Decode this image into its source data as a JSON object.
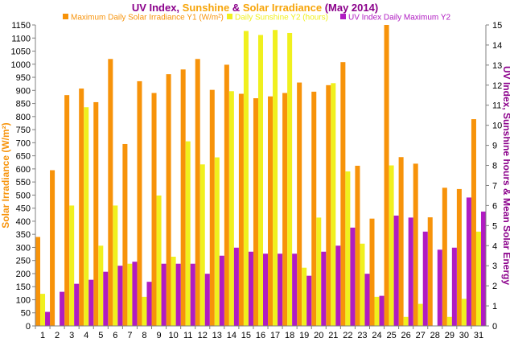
{
  "chart_data": {
    "type": "bar",
    "title_parts": [
      {
        "text": "UV Index, ",
        "color": "#8b008b"
      },
      {
        "text": "Sunshine",
        "color": "#f7a50a"
      },
      {
        "text": " & ",
        "color": "#8b008b"
      },
      {
        "text": "Solar Irradiance",
        "color": "#f7a50a"
      },
      {
        "text": " (May 2014)",
        "color": "#8b008b"
      }
    ],
    "ylabel_left": "Solar Irradiance (W/m²)",
    "ylabel_right": "UV Index, Sunshine hours & Mean Solar Energy",
    "categories": [
      "1",
      "2",
      "3",
      "4",
      "5",
      "6",
      "7",
      "8",
      "9",
      "10",
      "11",
      "12",
      "13",
      "14",
      "15",
      "16",
      "17",
      "18",
      "19",
      "20",
      "21",
      "22",
      "23",
      "24",
      "25",
      "26",
      "27",
      "28",
      "29",
      "30",
      "31"
    ],
    "y_left": {
      "min": 0,
      "max": 1150,
      "step": 50
    },
    "y_right": {
      "min": 0,
      "max": 15,
      "step": 1
    },
    "grid": false,
    "legend_position": "top",
    "series": [
      {
        "name": "Maximum Daily Solar Irradiance Y1 (W/m²)",
        "axis": "left",
        "color": "#f7930a",
        "values": [
          340,
          595,
          882,
          907,
          855,
          1020,
          695,
          935,
          890,
          962,
          980,
          1020,
          902,
          998,
          887,
          870,
          877,
          890,
          930,
          895,
          920,
          1008,
          612,
          410,
          1150,
          645,
          620,
          415,
          528,
          523,
          790
        ]
      },
      {
        "name": "Daily Sunshine Y2 (hours)",
        "axis": "right",
        "color": "#f0f01e",
        "values": [
          1.6,
          0,
          6.0,
          10.9,
          4.0,
          6.0,
          3.1,
          1.45,
          6.5,
          3.45,
          9.2,
          8.05,
          8.4,
          11.7,
          14.7,
          14.5,
          14.75,
          14.6,
          2.9,
          5.4,
          12.1,
          7.7,
          4.1,
          1.45,
          8.0,
          0.45,
          1.1,
          0,
          0.45,
          1.35,
          4.7
        ]
      },
      {
        "name": "UV Index Daily Maximum Y2",
        "axis": "right",
        "color": "#b01cc2",
        "values": [
          0.7,
          1.7,
          2.1,
          2.3,
          2.7,
          3.0,
          3.2,
          2.2,
          3.1,
          3.1,
          3.1,
          2.6,
          3.5,
          3.9,
          3.7,
          3.6,
          3.6,
          3.6,
          2.5,
          3.7,
          4.0,
          4.9,
          2.6,
          1.5,
          5.5,
          5.4,
          4.7,
          3.8,
          3.9,
          6.4,
          5.7
        ]
      }
    ]
  }
}
